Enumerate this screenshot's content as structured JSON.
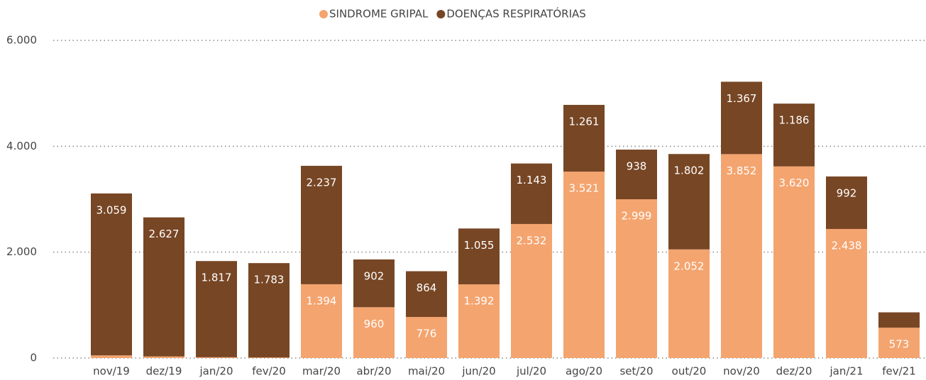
{
  "chart_data": {
    "type": "stacked_bar",
    "categories": [
      "nov/19",
      "dez/19",
      "jan/20",
      "fev/20",
      "mar/20",
      "abr/20",
      "mai/20",
      "jun/20",
      "jul/20",
      "ago/20",
      "set/20",
      "out/20",
      "nov/20",
      "dez/20",
      "jan/21",
      "fev/21"
    ],
    "series": [
      {
        "name": "SINDROME GRIPAL",
        "color": "#f4a46f",
        "values": [
          50,
          30,
          15,
          10,
          1394,
          960,
          776,
          1392,
          2532,
          3521,
          2999,
          2052,
          3852,
          3620,
          2438,
          573
        ],
        "value_labels": [
          null,
          null,
          null,
          null,
          "1.394",
          "960",
          "776",
          "1.392",
          "2.532",
          "3.521",
          "2.999",
          "2.052",
          "3.852",
          "3.620",
          "2.438",
          "573"
        ]
      },
      {
        "name": "DOENÇAS RESPIRATÓRIAS",
        "color": "#774624",
        "values": [
          3059,
          2627,
          1817,
          1783,
          2237,
          902,
          864,
          1055,
          1143,
          1261,
          938,
          1802,
          1367,
          1186,
          992,
          290
        ],
        "value_labels": [
          "3.059",
          "2.627",
          "1.817",
          "1.783",
          "2.237",
          "902",
          "864",
          "1.055",
          "1.143",
          "1.261",
          "938",
          "1.802",
          "1.367",
          "1.186",
          "992",
          null
        ]
      }
    ],
    "ylim": [
      0,
      6000
    ],
    "yticks": [
      0,
      {
        "value": 2000,
        "label": "2.000"
      },
      {
        "value": 4000,
        "label": "4.000"
      },
      {
        "value": 6000,
        "label": "6.000"
      }
    ],
    "grid": true,
    "legend": "top"
  }
}
